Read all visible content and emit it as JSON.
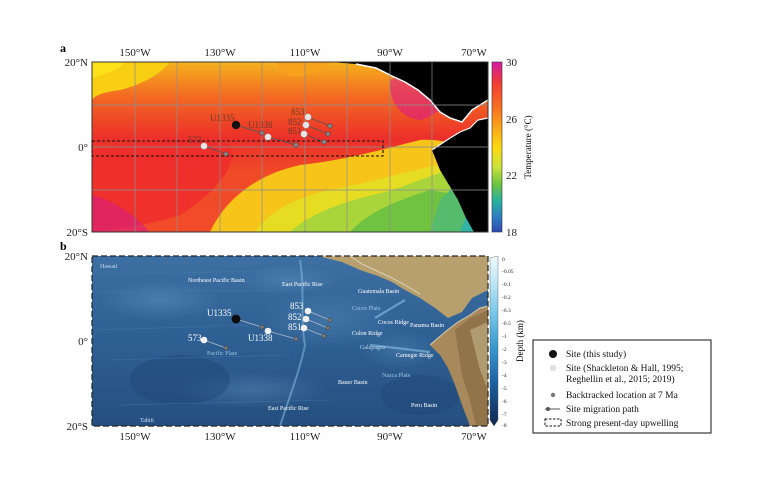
{
  "panel_a": {
    "letter": "a",
    "lon_labels": [
      "150°W",
      "130°W",
      "110°W",
      "90°W",
      "70°W"
    ],
    "lat_labels": [
      "20°N",
      "0°",
      "20°S"
    ],
    "colorbar": {
      "title": "Temperature (°C)",
      "ticks": [
        "30",
        "26",
        "22",
        "18"
      ],
      "colors": [
        "#d21aa5",
        "#f03a37",
        "#f76a22",
        "#f8a41a",
        "#ffd90f",
        "#c8e23b",
        "#6dc33f",
        "#26b1a2",
        "#2d78c0",
        "#2d4ab2"
      ]
    },
    "sites": {
      "u1335": "U1335",
      "u1338": "U1338",
      "s853": "853",
      "s852": "852",
      "s851": "851",
      "s573": "573"
    }
  },
  "panel_b": {
    "letter": "b",
    "lon_labels": [
      "150°W",
      "130°W",
      "110°W",
      "90°W",
      "70°W"
    ],
    "lat_labels": [
      "20°N",
      "0°",
      "20°S"
    ],
    "colorbar": {
      "title": "Depth (km)",
      "ticks": [
        "0",
        "-0.05",
        "-0.1",
        "-0.2",
        "-0.3",
        "-0.5",
        "-1",
        "-2",
        "-3",
        "-4",
        "-5",
        "-6",
        "-7",
        "-8"
      ],
      "colors": [
        "#f1fbff",
        "#cfeefb",
        "#a7dff4",
        "#7fcbea",
        "#58b4df",
        "#3596cb",
        "#1f74b1",
        "#185493",
        "#143a70",
        "#10274f"
      ]
    },
    "places": {
      "hawaii": "Hawaii",
      "ne_pacific_basin": "Northeast Pacific Basin",
      "east_pacific_rise_north": "East Pacific Rise",
      "guatemala_basin": "Guatemala Basin",
      "cocos_plate": "Cocos Plate",
      "cocos_ridge": "Cocos Ridge",
      "panama_basin": "Panama Basin",
      "colon_ridge": "Colon Ridge",
      "galapagos": "Galapagos",
      "carnegie_ridge": "Carnegie Ridge",
      "pacific_plate": "Pacific Plate",
      "nazca_plate": "Nazca Plate",
      "bauer_basin": "Bauer Basin",
      "east_pacific_rise_south": "East Pacific Rise",
      "peru_basin": "Peru Basin",
      "tahiti": "Tahiti"
    },
    "sites": {
      "u1335": "U1335",
      "u1338": "U1338",
      "s853": "853",
      "s852": "852",
      "s851": "851",
      "s573": "573"
    }
  },
  "legend": {
    "site_this_study": "Site (this study)",
    "site_previous_line1": "Site (Shackleton & Hall, 1995;",
    "site_previous_line2": "Reghellin et al., 2015; 2019)",
    "backtracked": "Backtracked location at 7 Ma",
    "migration": "Site migration path",
    "upwelling": "Strong present-day upwelling"
  }
}
